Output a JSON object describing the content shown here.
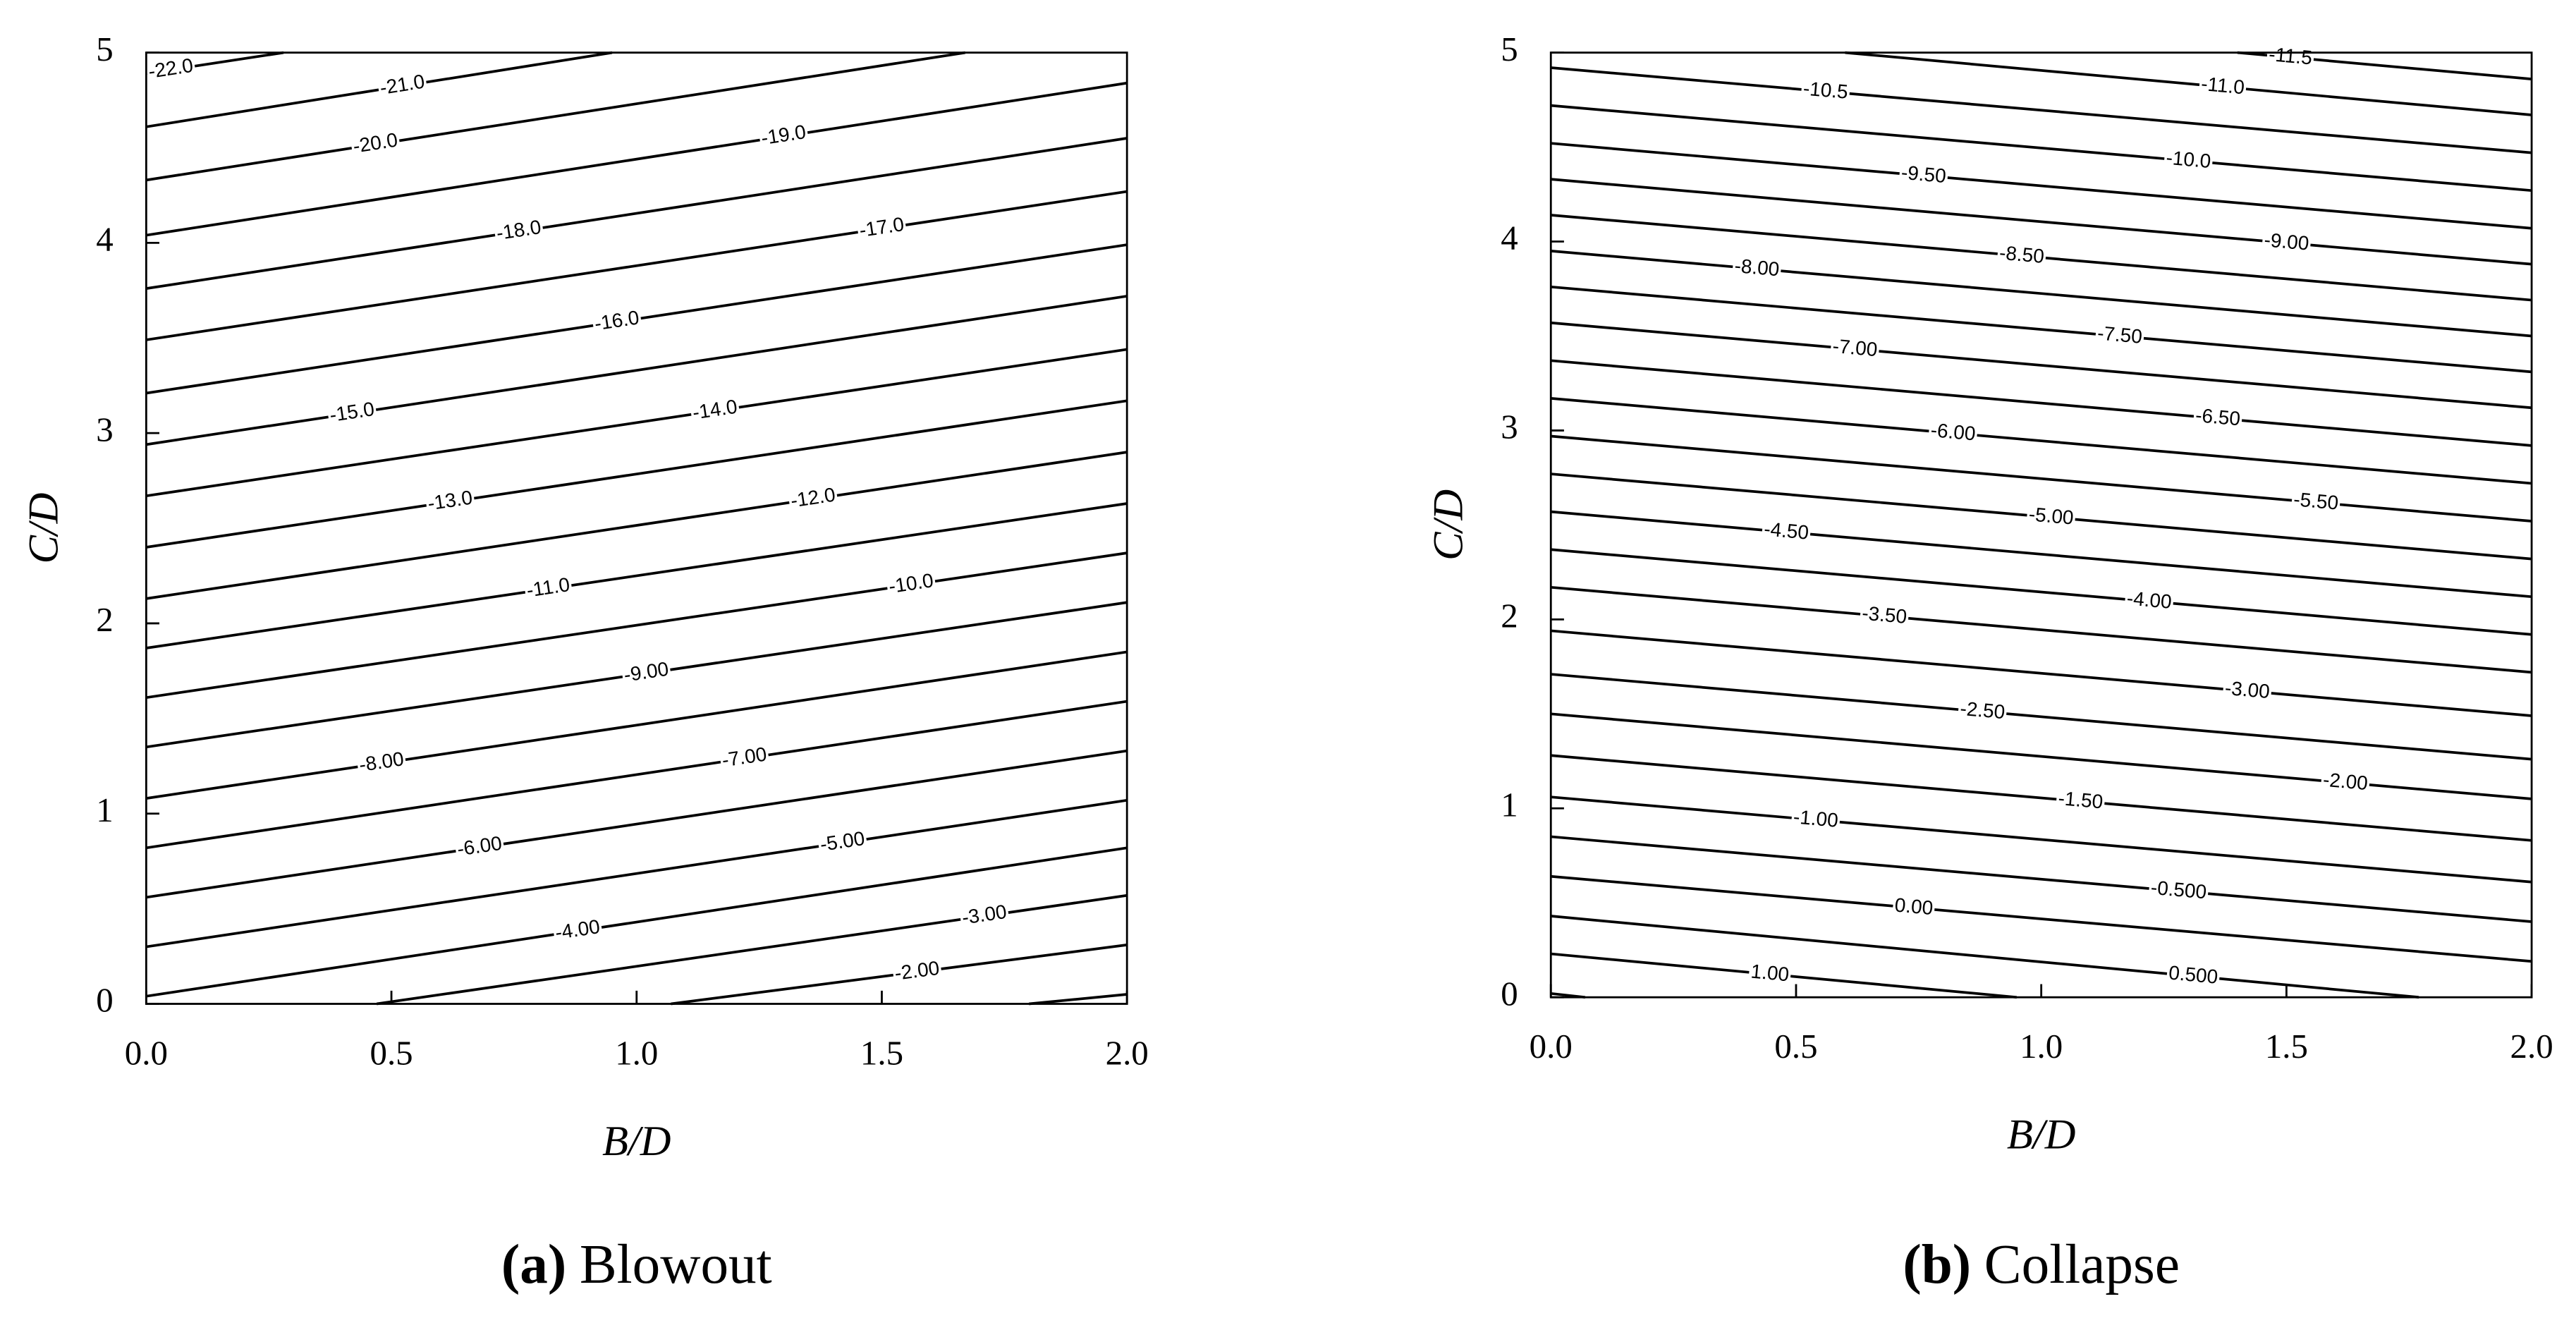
{
  "chart_data": [
    {
      "type": "contour",
      "caption_label": "(a)",
      "caption": "Blowout",
      "xlabel": "B/D",
      "ylabel": "C/D",
      "xlim": [
        0,
        2
      ],
      "xticks": [
        {
          "value": 0,
          "label": "0.0"
        },
        0.5,
        {
          "value": 1,
          "label": "1.0"
        },
        1.5,
        {
          "value": 2,
          "label": "2.0"
        }
      ],
      "ylim": [
        0,
        5
      ],
      "yticks": [
        0,
        1,
        2,
        3,
        4,
        5
      ],
      "color": "#000000",
      "lines": [
        {
          "level": -22,
          "label": "-22.0",
          "x": [
            0,
            0.28
          ],
          "y": [
            4.89,
            5
          ]
        },
        {
          "level": -21,
          "label": "-21.0",
          "x": [
            0,
            0.95
          ],
          "y": [
            4.61,
            5
          ]
        },
        {
          "level": -20,
          "label": "-20.0",
          "x": [
            0,
            1.67
          ],
          "y": [
            4.33,
            5
          ]
        },
        {
          "level": -19,
          "label": "-19.0",
          "x": [
            0,
            2
          ],
          "y": [
            4.04,
            4.84
          ]
        },
        {
          "level": -18,
          "label": "-18.0",
          "x": [
            0,
            2
          ],
          "y": [
            3.76,
            4.55
          ]
        },
        {
          "level": -17,
          "label": "-17.0",
          "x": [
            0,
            2
          ],
          "y": [
            3.49,
            4.27
          ]
        },
        {
          "level": -16,
          "label": "-16.0",
          "x": [
            0,
            2
          ],
          "y": [
            3.21,
            3.99
          ]
        },
        {
          "level": -15,
          "label": "-15.0",
          "x": [
            0,
            2
          ],
          "y": [
            2.94,
            3.72
          ]
        },
        {
          "level": -14,
          "label": "-14.0",
          "x": [
            0,
            2
          ],
          "y": [
            2.67,
            3.44
          ]
        },
        {
          "level": -13,
          "label": "-13.0",
          "x": [
            0,
            2
          ],
          "y": [
            2.4,
            3.17
          ]
        },
        {
          "level": -12,
          "label": "-12.0",
          "x": [
            0,
            2
          ],
          "y": [
            2.13,
            2.9
          ]
        },
        {
          "level": -11,
          "label": "-11.0",
          "x": [
            0,
            2
          ],
          "y": [
            1.87,
            2.63
          ]
        },
        {
          "level": -10,
          "label": "-10.0",
          "x": [
            0,
            2
          ],
          "y": [
            1.61,
            2.37
          ]
        },
        {
          "level": -9,
          "label": "-9.00",
          "x": [
            0,
            2
          ],
          "y": [
            1.35,
            2.11
          ]
        },
        {
          "level": -8,
          "label": "-8.00",
          "x": [
            0,
            2
          ],
          "y": [
            1.08,
            1.85
          ]
        },
        {
          "level": -7,
          "label": "-7.00",
          "x": [
            0,
            2
          ],
          "y": [
            0.82,
            1.59
          ]
        },
        {
          "level": -6,
          "label": "-6.00",
          "x": [
            0,
            2
          ],
          "y": [
            0.56,
            1.33
          ]
        },
        {
          "level": -5,
          "label": "-5.00",
          "x": [
            0,
            2
          ],
          "y": [
            0.3,
            1.07
          ]
        },
        {
          "level": -4,
          "label": "-4.00",
          "x": [
            0,
            2
          ],
          "y": [
            0.04,
            0.82
          ]
        },
        {
          "level": -3,
          "label": "-3.00",
          "x": [
            0.47,
            2
          ],
          "y": [
            0,
            0.57
          ]
        },
        {
          "level": -2,
          "label": "-2.00",
          "x": [
            1.07,
            2
          ],
          "y": [
            0,
            0.31
          ]
        },
        {
          "level": -1,
          "x": [
            1.8,
            2
          ],
          "y": [
            0,
            0.05
          ]
        }
      ]
    },
    {
      "type": "contour",
      "caption_label": "(b)",
      "caption": "Collapse",
      "xlabel": "B/D",
      "ylabel": "C/D",
      "xlim": [
        0,
        2
      ],
      "xticks": [
        {
          "value": 0,
          "label": "0.0"
        },
        0.5,
        {
          "value": 1,
          "label": "1.0"
        },
        1.5,
        {
          "value": 2,
          "label": "2.0"
        }
      ],
      "ylim": [
        0,
        5
      ],
      "yticks": [
        0,
        1,
        2,
        3,
        4,
        5
      ],
      "color": "#000000",
      "lines": [
        {
          "level": -11.5,
          "label": "-11.5",
          "x": [
            1.4,
            2
          ],
          "y": [
            5,
            4.86
          ]
        },
        {
          "level": -11,
          "label": "-11.0",
          "x": [
            0.6,
            2
          ],
          "y": [
            5,
            4.67
          ]
        },
        {
          "level": -10.5,
          "label": "-10.5",
          "x": [
            0,
            2
          ],
          "y": [
            4.92,
            4.47
          ]
        },
        {
          "level": -10,
          "label": "-10.0",
          "x": [
            0,
            2
          ],
          "y": [
            4.72,
            4.27
          ]
        },
        {
          "level": -9.5,
          "label": "-9.50",
          "x": [
            0,
            2
          ],
          "y": [
            4.52,
            4.07
          ]
        },
        {
          "level": -9,
          "label": "-9.00",
          "x": [
            0,
            2
          ],
          "y": [
            4.33,
            3.88
          ]
        },
        {
          "level": -8.5,
          "label": "-8.50",
          "x": [
            0,
            2
          ],
          "y": [
            4.14,
            3.69
          ]
        },
        {
          "level": -8,
          "label": "-8.00",
          "x": [
            0,
            2
          ],
          "y": [
            3.95,
            3.5
          ]
        },
        {
          "level": -7.5,
          "label": "-7.50",
          "x": [
            0,
            2
          ],
          "y": [
            3.76,
            3.31
          ]
        },
        {
          "level": -7,
          "label": "-7.00",
          "x": [
            0,
            2
          ],
          "y": [
            3.57,
            3.12
          ]
        },
        {
          "level": -6.5,
          "label": "-6.50",
          "x": [
            0,
            2
          ],
          "y": [
            3.37,
            2.92
          ]
        },
        {
          "level": -6,
          "label": "-6.00",
          "x": [
            0,
            2
          ],
          "y": [
            3.17,
            2.72
          ]
        },
        {
          "level": -5.5,
          "label": "-5.50",
          "x": [
            0,
            2
          ],
          "y": [
            2.97,
            2.52
          ]
        },
        {
          "level": -5,
          "label": "-5.00",
          "x": [
            0,
            2
          ],
          "y": [
            2.77,
            2.32
          ]
        },
        {
          "level": -4.5,
          "label": "-4.50",
          "x": [
            0,
            2
          ],
          "y": [
            2.57,
            2.12
          ]
        },
        {
          "level": -4,
          "label": "-4.00",
          "x": [
            0,
            2
          ],
          "y": [
            2.37,
            1.92
          ]
        },
        {
          "level": -3.5,
          "label": "-3.50",
          "x": [
            0,
            2
          ],
          "y": [
            2.17,
            1.72
          ]
        },
        {
          "level": -3,
          "label": "-3.00",
          "x": [
            0,
            2
          ],
          "y": [
            1.94,
            1.49
          ]
        },
        {
          "level": -2.5,
          "label": "-2.50",
          "x": [
            0,
            2
          ],
          "y": [
            1.71,
            1.26
          ]
        },
        {
          "level": -2,
          "label": "-2.00",
          "x": [
            0,
            2
          ],
          "y": [
            1.5,
            1.05
          ]
        },
        {
          "level": -1.5,
          "label": "-1.50",
          "x": [
            0,
            2
          ],
          "y": [
            1.28,
            0.83
          ]
        },
        {
          "level": -1,
          "label": "-1.00",
          "x": [
            0,
            2
          ],
          "y": [
            1.06,
            0.61
          ]
        },
        {
          "level": -0.5,
          "label": "-0.500",
          "x": [
            0,
            2
          ],
          "y": [
            0.85,
            0.4
          ]
        },
        {
          "level": 0,
          "label": "0.00",
          "x": [
            0,
            2
          ],
          "y": [
            0.64,
            0.19
          ]
        },
        {
          "level": 0.5,
          "label": "0.500",
          "x": [
            0,
            1.77
          ],
          "y": [
            0.43,
            0
          ]
        },
        {
          "level": 1,
          "label": "1.00",
          "x": [
            0,
            0.95
          ],
          "y": [
            0.23,
            0
          ]
        },
        {
          "level": 1.5,
          "x": [
            0,
            0.07
          ],
          "y": [
            0.02,
            0
          ]
        }
      ]
    }
  ]
}
